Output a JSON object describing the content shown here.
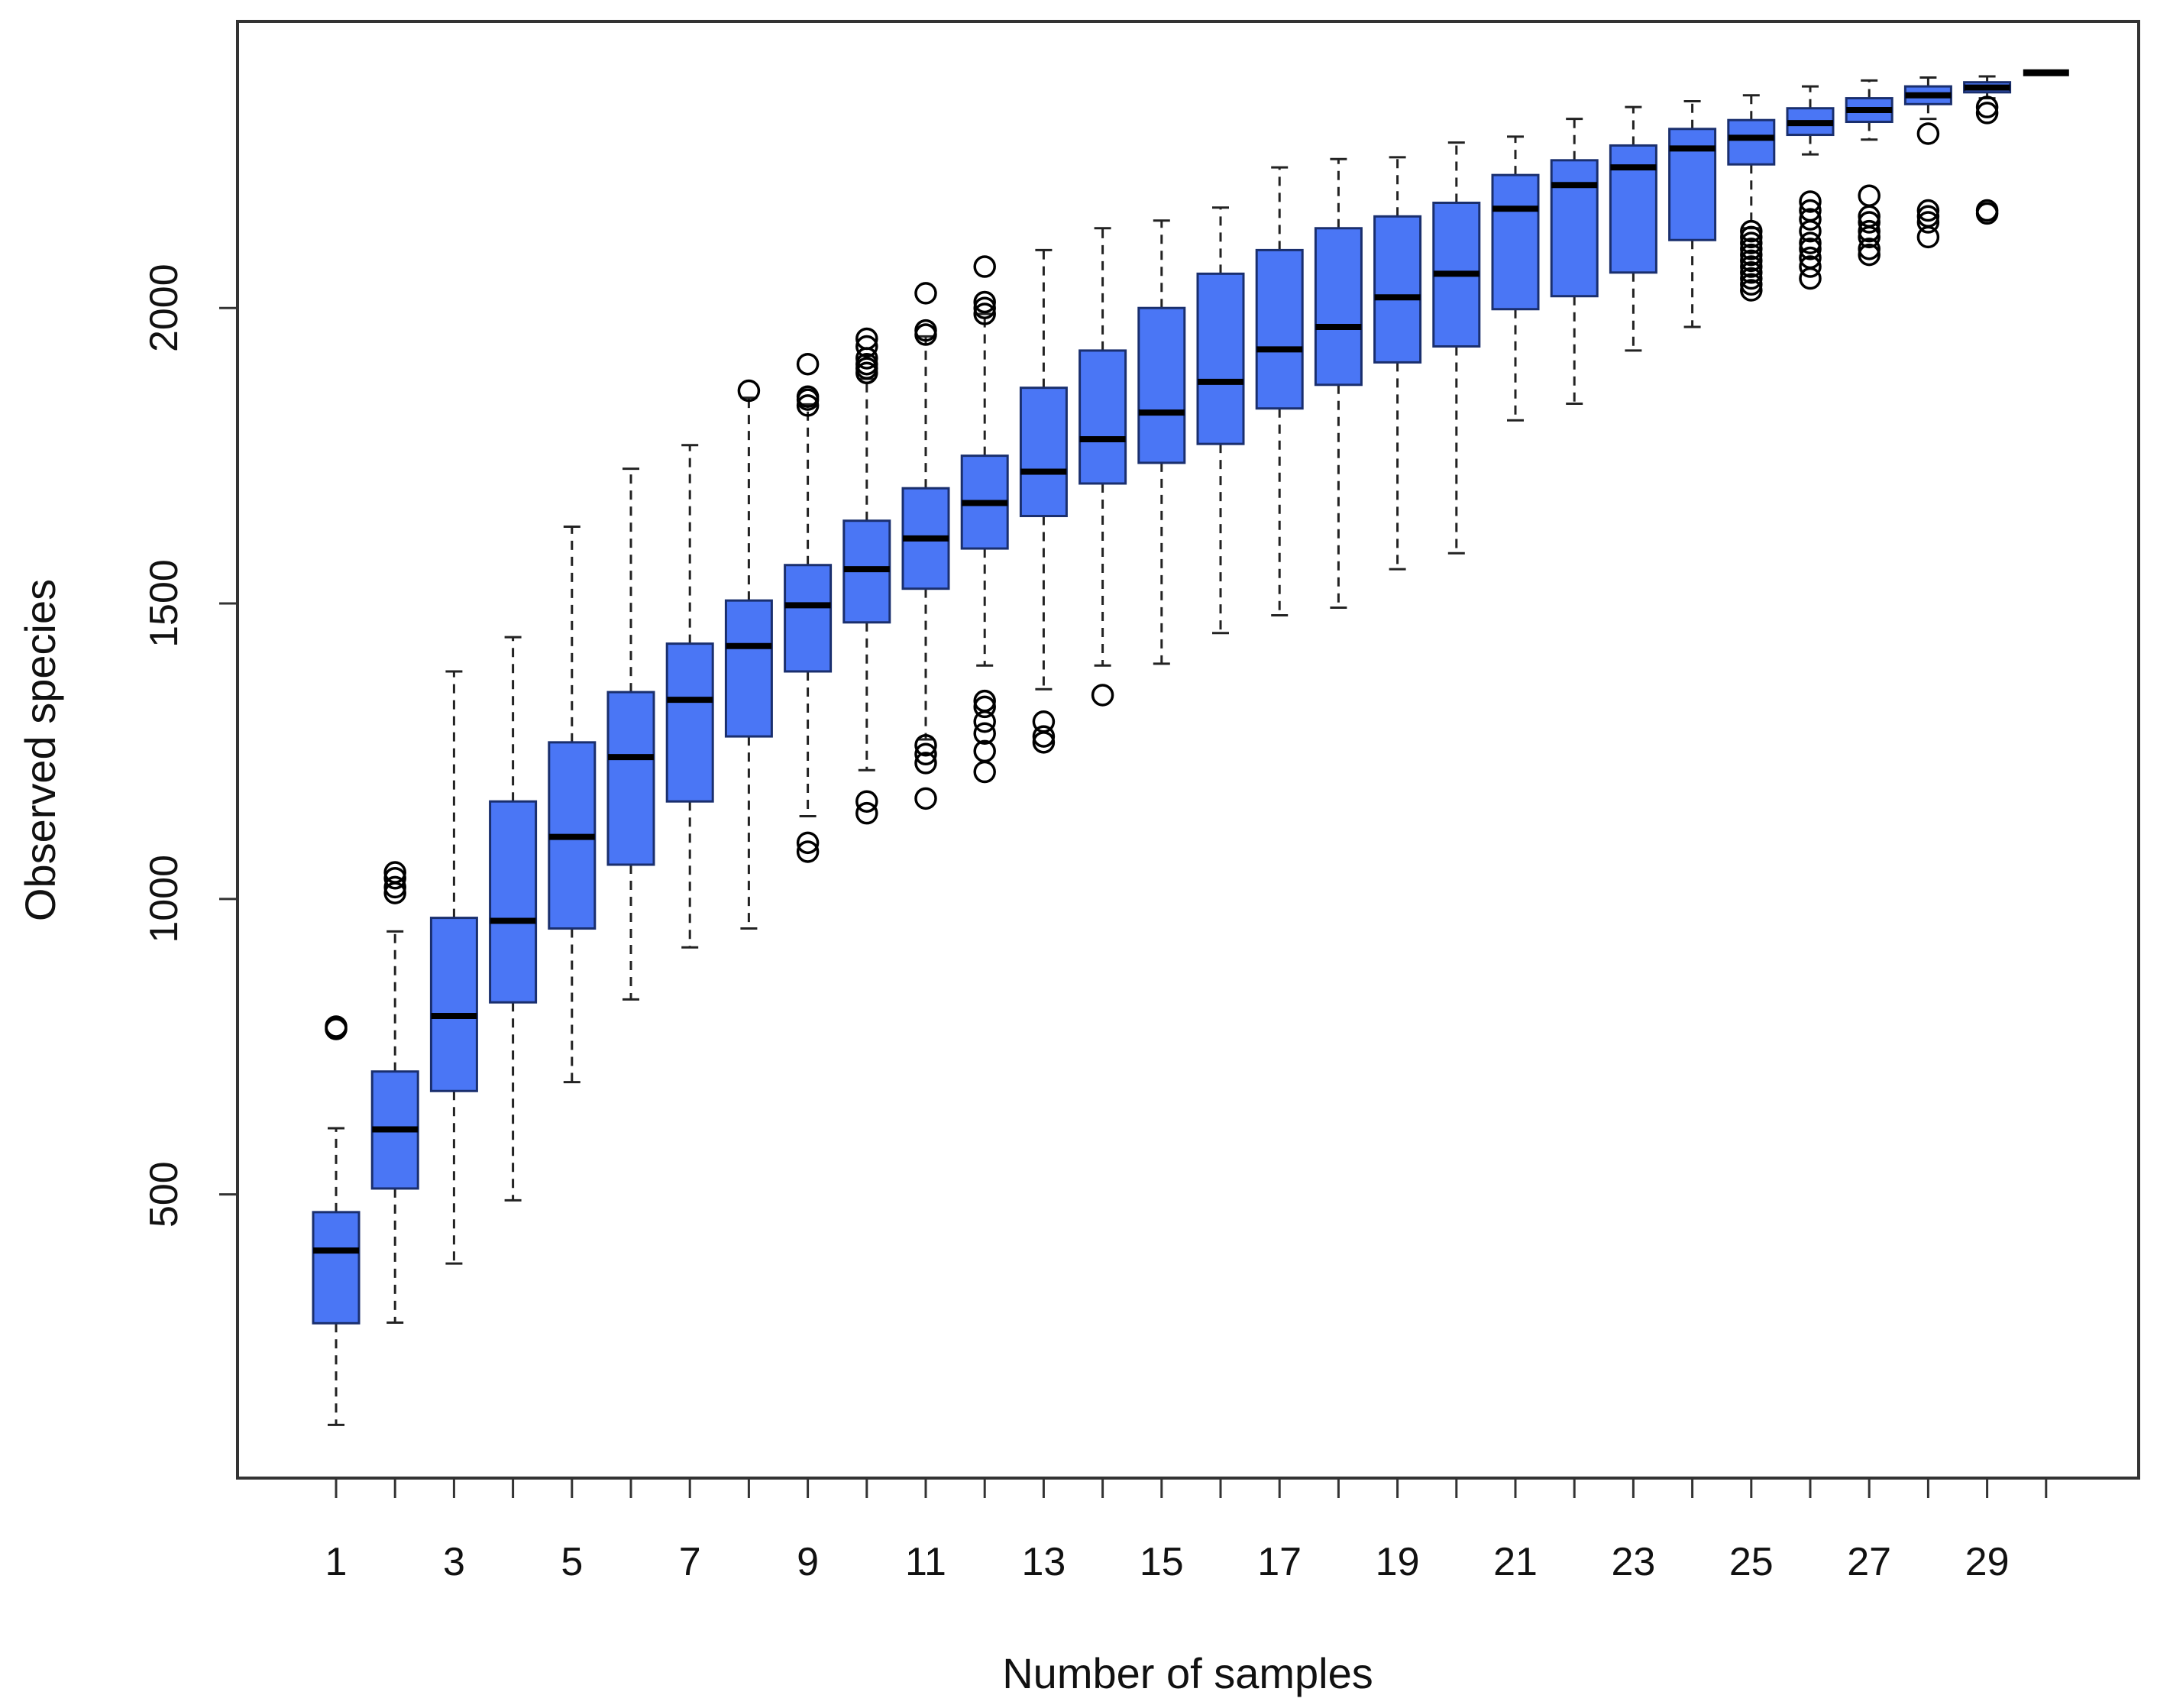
{
  "chart_data": {
    "type": "boxplot",
    "title": "",
    "xlabel": "Number of samples",
    "ylabel": "Observed species",
    "ylim": [
      20,
      2485
    ],
    "yticks": [
      500,
      1000,
      1500,
      2000
    ],
    "x_tick_labels": [
      "1",
      "3",
      "5",
      "7",
      "9",
      "11",
      "13",
      "15",
      "17",
      "19",
      "21",
      "23",
      "25",
      "27",
      "29"
    ],
    "categories": [
      1,
      2,
      3,
      4,
      5,
      6,
      7,
      8,
      9,
      10,
      11,
      12,
      13,
      14,
      15,
      16,
      17,
      18,
      19,
      20,
      21,
      22,
      23,
      24,
      25,
      26,
      27,
      28,
      29,
      30
    ],
    "box_color": "#4a76f5",
    "box_stroke": "#1a2f6e",
    "boxes": [
      {
        "x": 1,
        "lw": 110,
        "q1": 282,
        "med": 405,
        "q3": 470,
        "uw": 612,
        "out": [
          780,
          784
        ]
      },
      {
        "x": 2,
        "lw": 283,
        "q1": 510,
        "med": 610,
        "q3": 708,
        "uw": 945,
        "out": [
          1010,
          1020,
          1035,
          1045
        ]
      },
      {
        "x": 3,
        "lw": 383,
        "q1": 675,
        "med": 802,
        "q3": 968,
        "uw": 1385,
        "out": []
      },
      {
        "x": 4,
        "lw": 490,
        "q1": 825,
        "med": 963,
        "q3": 1165,
        "uw": 1443,
        "out": []
      },
      {
        "x": 5,
        "lw": 690,
        "q1": 950,
        "med": 1105,
        "q3": 1265,
        "uw": 1630,
        "out": []
      },
      {
        "x": 6,
        "lw": 830,
        "q1": 1058,
        "med": 1240,
        "q3": 1350,
        "uw": 1728,
        "out": []
      },
      {
        "x": 7,
        "lw": 918,
        "q1": 1165,
        "med": 1337,
        "q3": 1432,
        "uw": 1768,
        "out": []
      },
      {
        "x": 8,
        "lw": 950,
        "q1": 1275,
        "med": 1428,
        "q3": 1505,
        "uw": 1848,
        "out": [
          1860
        ]
      },
      {
        "x": 9,
        "lw": 1140,
        "q1": 1385,
        "med": 1497,
        "q3": 1565,
        "uw": 1837,
        "out": [
          1080,
          1095,
          1835,
          1845,
          1850,
          1905
        ]
      },
      {
        "x": 10,
        "lw": 1218,
        "q1": 1468,
        "med": 1558,
        "q3": 1640,
        "uw": 1880,
        "out": [
          1145,
          1165,
          1890,
          1898,
          1905,
          1915,
          1935,
          1948
        ]
      },
      {
        "x": 11,
        "lw": 1270,
        "q1": 1525,
        "med": 1610,
        "q3": 1695,
        "uw": 1952,
        "out": [
          1170,
          1230,
          1245,
          1260,
          1955,
          1962,
          2025
        ]
      },
      {
        "x": 12,
        "lw": 1395,
        "q1": 1593,
        "med": 1670,
        "q3": 1750,
        "uw": 1990,
        "out": [
          1215,
          1250,
          1280,
          1300,
          1325,
          1335,
          1990,
          2000,
          2010,
          2070
        ]
      },
      {
        "x": 13,
        "lw": 1355,
        "q1": 1648,
        "med": 1723,
        "q3": 1865,
        "uw": 2098,
        "out": [
          1265,
          1275,
          1300
        ]
      },
      {
        "x": 14,
        "lw": 1395,
        "q1": 1703,
        "med": 1778,
        "q3": 1928,
        "uw": 2135,
        "out": [
          1345
        ]
      },
      {
        "x": 15,
        "lw": 1398,
        "q1": 1738,
        "med": 1823,
        "q3": 2000,
        "uw": 2148,
        "out": []
      },
      {
        "x": 16,
        "lw": 1450,
        "q1": 1770,
        "med": 1875,
        "q3": 2058,
        "uw": 2170,
        "out": []
      },
      {
        "x": 17,
        "lw": 1480,
        "q1": 1830,
        "med": 1930,
        "q3": 2098,
        "uw": 2238,
        "out": []
      },
      {
        "x": 18,
        "lw": 1493,
        "q1": 1870,
        "med": 1968,
        "q3": 2135,
        "uw": 2252,
        "out": []
      },
      {
        "x": 19,
        "lw": 1558,
        "q1": 1908,
        "med": 2018,
        "q3": 2155,
        "uw": 2255,
        "out": []
      },
      {
        "x": 20,
        "lw": 1585,
        "q1": 1935,
        "med": 2058,
        "q3": 2178,
        "uw": 2280,
        "out": []
      },
      {
        "x": 21,
        "lw": 1810,
        "q1": 1998,
        "med": 2168,
        "q3": 2225,
        "uw": 2290,
        "out": []
      },
      {
        "x": 22,
        "lw": 1838,
        "q1": 2020,
        "med": 2208,
        "q3": 2250,
        "uw": 2320,
        "out": []
      },
      {
        "x": 23,
        "lw": 1928,
        "q1": 2060,
        "med": 2238,
        "q3": 2275,
        "uw": 2340,
        "out": []
      },
      {
        "x": 24,
        "lw": 1968,
        "q1": 2115,
        "med": 2270,
        "q3": 2303,
        "uw": 2350,
        "out": []
      },
      {
        "x": 25,
        "lw": 2135,
        "q1": 2243,
        "med": 2288,
        "q3": 2318,
        "uw": 2360,
        "out": [
          2030,
          2040,
          2050,
          2060,
          2070,
          2080,
          2090,
          2100,
          2110,
          2120,
          2130
        ]
      },
      {
        "x": 26,
        "lw": 2260,
        "q1": 2293,
        "med": 2313,
        "q3": 2338,
        "uw": 2375,
        "out": [
          2050,
          2070,
          2085,
          2100,
          2110,
          2130,
          2150,
          2165,
          2180
        ]
      },
      {
        "x": 27,
        "lw": 2285,
        "q1": 2315,
        "med": 2335,
        "q3": 2355,
        "uw": 2385,
        "out": [
          2090,
          2100,
          2120,
          2130,
          2145,
          2155,
          2190
        ]
      },
      {
        "x": 28,
        "lw": 2320,
        "q1": 2345,
        "med": 2360,
        "q3": 2375,
        "uw": 2390,
        "out": [
          2120,
          2145,
          2155,
          2165,
          2295
        ]
      },
      {
        "x": 29,
        "lw": 2355,
        "q1": 2365,
        "med": 2373,
        "q3": 2382,
        "uw": 2392,
        "out": [
          2160,
          2165,
          2330,
          2340
        ]
      },
      {
        "x": 30,
        "lw": 2398,
        "q1": 2398,
        "med": 2398,
        "q3": 2398,
        "uw": 2398,
        "out": []
      }
    ]
  }
}
